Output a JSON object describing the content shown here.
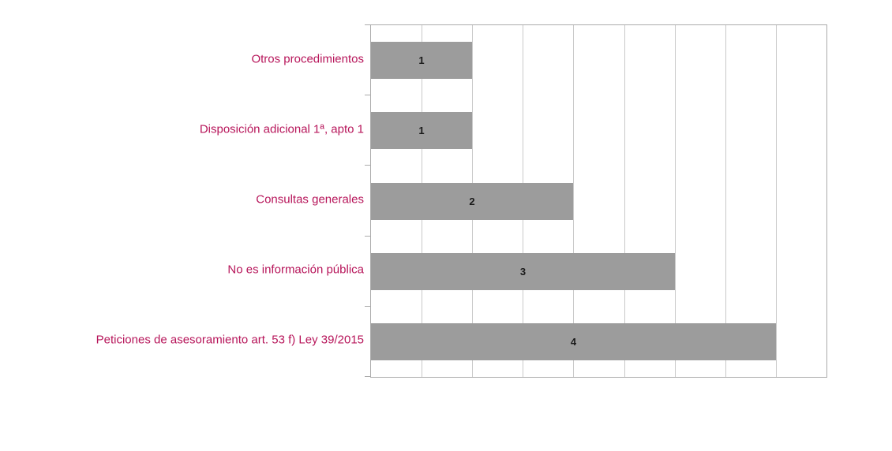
{
  "chart_data": {
    "type": "bar",
    "orientation": "horizontal",
    "title": "",
    "xlabel": "",
    "ylabel": "",
    "categories": [
      "Otros procedimientos",
      "Disposición adicional 1ª, apto 1",
      "Consultas generales",
      "No es información pública",
      "Peticiones de asesoramiento art. 53 f) Ley 39/2015"
    ],
    "values": [
      1,
      1,
      2,
      3,
      4
    ],
    "xlim": [
      0,
      4.5
    ],
    "gridline_step": 0.5,
    "grid": true,
    "legend": false,
    "value_labels_shown": true,
    "colors": {
      "bar_fill": "#9c9c9c",
      "value_label": "#1a1a1a",
      "category_label": "#b7155a",
      "gridline": "#c9c9c9",
      "plot_border": "#ababab",
      "background": "#ffffff"
    }
  }
}
